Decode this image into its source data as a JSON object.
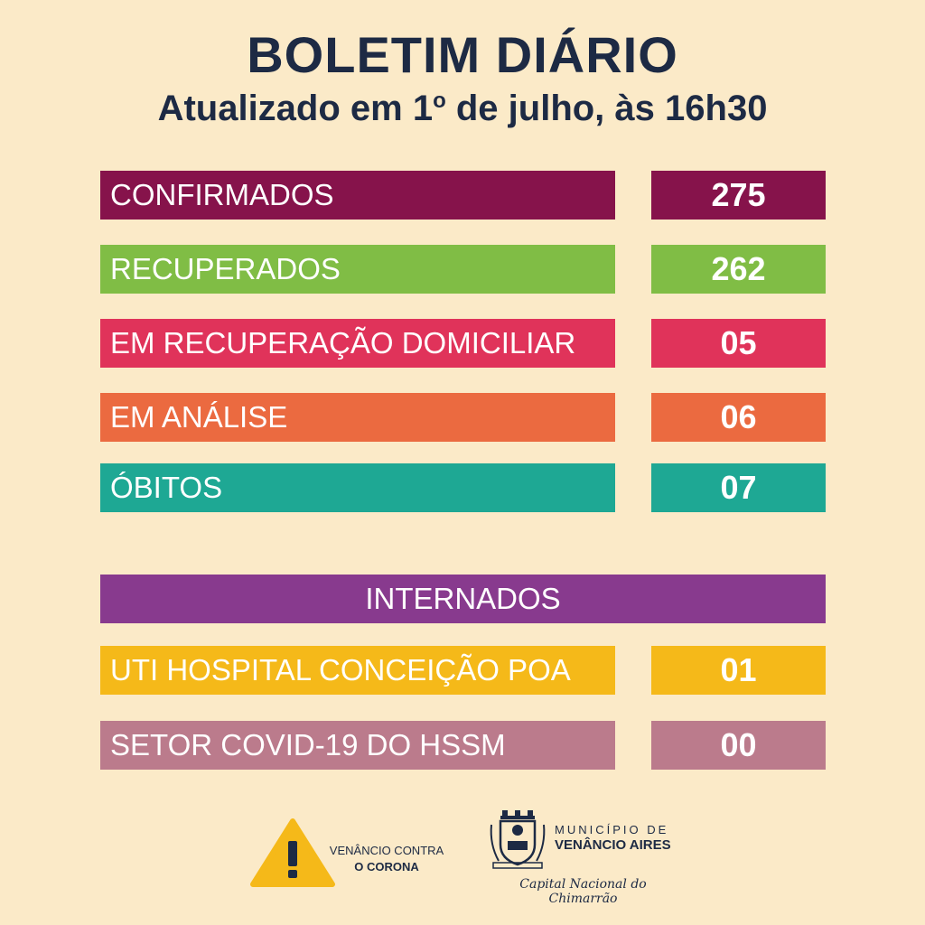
{
  "header": {
    "title": "BOLETIM DIÁRIO",
    "subtitle_prefix": "Atualizado em 1",
    "subtitle_sup": "o",
    "subtitle_suffix": " de julho, às 16h30"
  },
  "stats": [
    {
      "label": "CONFIRMADOS",
      "value": "275",
      "color": "#86134b"
    },
    {
      "label": "RECUPERADOS",
      "value": "262",
      "color": "#80bd45"
    },
    {
      "label": "EM RECUPERAÇÃO DOMICILIAR",
      "value": "05",
      "color": "#e0335a"
    },
    {
      "label": "EM ANÁLISE",
      "value": "06",
      "color": "#eb6a40"
    },
    {
      "label": "ÓBITOS",
      "value": "07",
      "color": "#1ea894"
    }
  ],
  "hospitalized": {
    "heading": "INTERNADOS",
    "heading_color": "#883a8e",
    "rows": [
      {
        "label": "UTI HOSPITAL CONCEIÇÃO POA",
        "value": "01",
        "color": "#f5b919"
      },
      {
        "label": "SETOR COVID-19 DO HSSM",
        "value": "00",
        "color": "#bb7b8c"
      }
    ]
  },
  "footer": {
    "campaign_line1": "VENÂNCIO CONTRA",
    "campaign_line2": "O CORONA",
    "campaign_icon": "warning-triangle-icon",
    "municipality_line1": "MUNICÍPIO DE",
    "municipality_line2": "VENÂNCIO AIRES",
    "slogan": "Capital Nacional do Chimarrão",
    "crest_icon": "coat-of-arms-icon"
  }
}
